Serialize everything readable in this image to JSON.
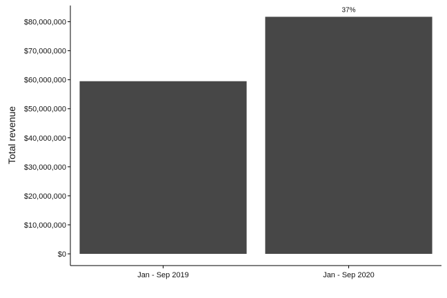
{
  "chart_data": {
    "type": "bar",
    "categories": [
      "Jan - Sep 2019",
      "Jan - Sep 2020"
    ],
    "values": [
      59500000,
      81700000
    ],
    "data_labels": [
      "",
      "37%"
    ],
    "xlabel": "",
    "ylabel": "Total revenue",
    "ylim": [
      0,
      84000000
    ],
    "yticks": [
      0,
      10000000,
      20000000,
      30000000,
      40000000,
      50000000,
      60000000,
      70000000,
      80000000
    ],
    "ytick_labels": [
      "$0",
      "$10,000,000",
      "$20,000,000",
      "$30,000,000",
      "$40,000,000",
      "$50,000,000",
      "$60,000,000",
      "$70,000,000",
      "$80,000,000"
    ],
    "grid": false,
    "legend": "none",
    "colors": {
      "bar": "#474747",
      "axis": "#000000"
    }
  }
}
